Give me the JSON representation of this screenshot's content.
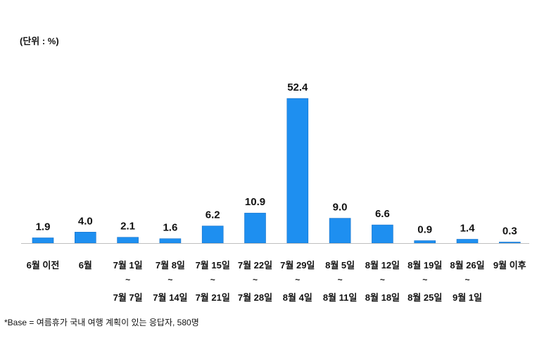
{
  "unit_label": "(단위 : %)",
  "footnote": "*Base = 여름휴가 국내 여행 계획이 있는 응답자, 580명",
  "chart_data": {
    "type": "bar",
    "title": "",
    "xlabel": "",
    "ylabel": "",
    "ylim": [
      0,
      60
    ],
    "grid": false,
    "bar_color": "#1E8FF0",
    "categories": [
      [
        "6월 이전"
      ],
      [
        "6월"
      ],
      [
        "7월 1일",
        "~",
        "7월 7일"
      ],
      [
        "7월 8일",
        "~",
        "7월 14일"
      ],
      [
        "7월 15일",
        "~",
        "7월 21일"
      ],
      [
        "7월 22일",
        "~",
        "7월 28일"
      ],
      [
        "7월 29일",
        "~",
        "8월 4일"
      ],
      [
        "8월 5일",
        "~",
        "8월 11일"
      ],
      [
        "8월 12일",
        "~",
        "8월 18일"
      ],
      [
        "8월 19일",
        "~",
        "8월 25일"
      ],
      [
        "8월 26일",
        "~",
        "9월 1일"
      ],
      [
        "9월 이후"
      ]
    ],
    "values": [
      1.9,
      4.0,
      2.1,
      1.6,
      6.2,
      10.9,
      52.4,
      9.0,
      6.6,
      0.9,
      1.4,
      0.3
    ],
    "value_labels": [
      "1.9",
      "4.0",
      "2.1",
      "1.6",
      "6.2",
      "10.9",
      "52.4",
      "9.0",
      "6.6",
      "0.9",
      "1.4",
      "0.3"
    ]
  }
}
